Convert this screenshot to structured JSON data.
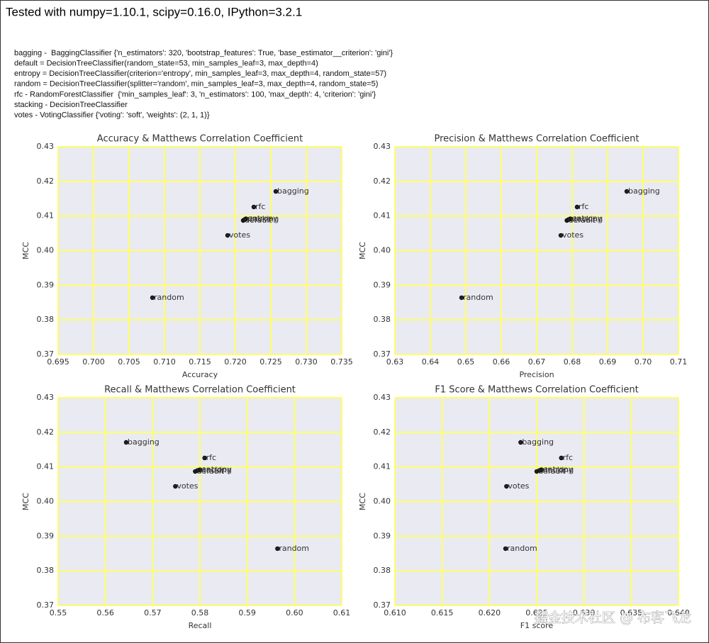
{
  "header": {
    "title": "Tested with numpy=1.10.1, scipy=0.16.0, IPython=3.2.1",
    "notes": [
      "bagging -  BaggingClassifier {'n_estimators': 320, 'bootstrap_features': True, 'base_estimator__criterion': 'gini'}",
      "default = DecisionTreeClassifier(random_state=53, min_samples_leaf=3, max_depth=4)",
      "entropy = DecisionTreeClassifier(criterion='entropy', min_samples_leaf=3, max_depth=4, random_state=57)",
      "random = DecisionTreeClassifier(splitter='random', min_samples_leaf=3, max_depth=4, random_state=5)",
      "rfc - RandomForestClassifier  {'min_samples_leaf': 3, 'n_estimators': 100, 'max_depth': 4, 'criterion': 'gini'}",
      "stacking - DecisionTreeClassifier",
      "votes - VotingClassifier {'voting': 'soft', 'weights': (2, 1, 1)}"
    ]
  },
  "watermark": "掘金技术社区 @ 布客飞龙",
  "chart_data": [
    {
      "type": "scatter",
      "title": "Accuracy & Matthews Correlation Coefficient",
      "x_label": "Accuracy",
      "y_label": "MCC",
      "labels": [
        "bagging",
        "default",
        "entropy",
        "random",
        "rfc",
        "stacking",
        "votes"
      ],
      "x": [
        0.7257,
        0.7211,
        0.7215,
        0.7083,
        0.7226,
        0.7213,
        0.7189
      ],
      "y": [
        0.4171,
        0.4087,
        0.4092,
        0.3864,
        0.4126,
        0.409,
        0.4044
      ],
      "color": "#222222",
      "grid": true,
      "grid_color": "#ffff66",
      "xlim": [
        0.695,
        0.735
      ],
      "xticks": [
        0.695,
        {
          "value": 0.7,
          "label": "0.700"
        },
        0.705,
        {
          "value": 0.71,
          "label": "0.710"
        },
        0.715,
        {
          "value": 0.72,
          "label": "0.720"
        },
        0.725,
        {
          "value": 0.73,
          "label": "0.730"
        },
        0.735
      ],
      "ylim": [
        0.37,
        0.43
      ],
      "yticks": [
        0.37,
        0.38,
        0.39,
        {
          "value": 0.4,
          "label": "0.40"
        },
        0.41,
        0.42,
        0.43
      ]
    },
    {
      "type": "scatter",
      "title": "Precision & Matthews Correlation Coefficient",
      "x_label": "Precision",
      "y_label": "MCC",
      "labels": [
        "bagging",
        "default",
        "entropy",
        "random",
        "rfc",
        "stacking",
        "votes"
      ],
      "x": [
        0.6954,
        0.6785,
        0.6795,
        0.6488,
        0.6814,
        0.679,
        0.6768
      ],
      "y": [
        0.4171,
        0.4087,
        0.4092,
        0.3864,
        0.4126,
        0.409,
        0.4044
      ],
      "color": "#222222",
      "grid": true,
      "grid_color": "#ffff66",
      "xlim": [
        0.63,
        0.71
      ],
      "xticks": [
        0.63,
        0.64,
        0.65,
        0.66,
        0.67,
        0.68,
        0.69,
        {
          "value": 0.7,
          "label": "0.70"
        },
        0.71
      ],
      "ylim": [
        0.37,
        0.43
      ],
      "yticks": [
        0.37,
        0.38,
        0.39,
        {
          "value": 0.4,
          "label": "0.40"
        },
        0.41,
        0.42,
        0.43
      ]
    },
    {
      "type": "scatter",
      "title": "Recall & Matthews Correlation Coefficient",
      "x_label": "Recall",
      "y_label": "MCC",
      "labels": [
        "bagging",
        "default",
        "entropy",
        "random",
        "rfc",
        "stacking",
        "votes"
      ],
      "x": [
        0.5644,
        0.579,
        0.58,
        0.5964,
        0.581,
        0.5795,
        0.5748
      ],
      "y": [
        0.4171,
        0.4087,
        0.4092,
        0.3864,
        0.4126,
        0.409,
        0.4044
      ],
      "color": "#222222",
      "grid": true,
      "grid_color": "#ffff66",
      "xlim": [
        0.55,
        0.61
      ],
      "xticks": [
        0.55,
        0.56,
        0.57,
        0.58,
        0.59,
        {
          "value": 0.6,
          "label": "0.60"
        },
        0.61
      ],
      "ylim": [
        0.37,
        0.43
      ],
      "yticks": [
        0.37,
        0.38,
        0.39,
        {
          "value": 0.4,
          "label": "0.40"
        },
        0.41,
        0.42,
        0.43
      ]
    },
    {
      "type": "scatter",
      "title": "F1 Score & Matthews Correlation Coefficient",
      "x_label": "F1 score",
      "y_label": "MCC",
      "labels": [
        "bagging",
        "default",
        "entropy",
        "random",
        "rfc",
        "stacking",
        "votes"
      ],
      "x": [
        0.6233,
        0.625,
        0.6255,
        0.6217,
        0.6276,
        0.6253,
        0.6218
      ],
      "y": [
        0.4171,
        0.4087,
        0.4092,
        0.3864,
        0.4126,
        0.409,
        0.4044
      ],
      "color": "#222222",
      "grid": true,
      "grid_color": "#ffff66",
      "xlim": [
        0.61,
        0.64
      ],
      "xticks": [
        {
          "value": 0.61,
          "label": "0.610"
        },
        0.615,
        {
          "value": 0.62,
          "label": "0.620"
        },
        0.625,
        {
          "value": 0.63,
          "label": "0.630"
        },
        0.635,
        {
          "value": 0.64,
          "label": "0.640"
        }
      ],
      "ylim": [
        0.37,
        0.43
      ],
      "yticks": [
        0.37,
        0.38,
        0.39,
        {
          "value": 0.4,
          "label": "0.40"
        },
        0.41,
        0.42,
        0.43
      ]
    }
  ]
}
